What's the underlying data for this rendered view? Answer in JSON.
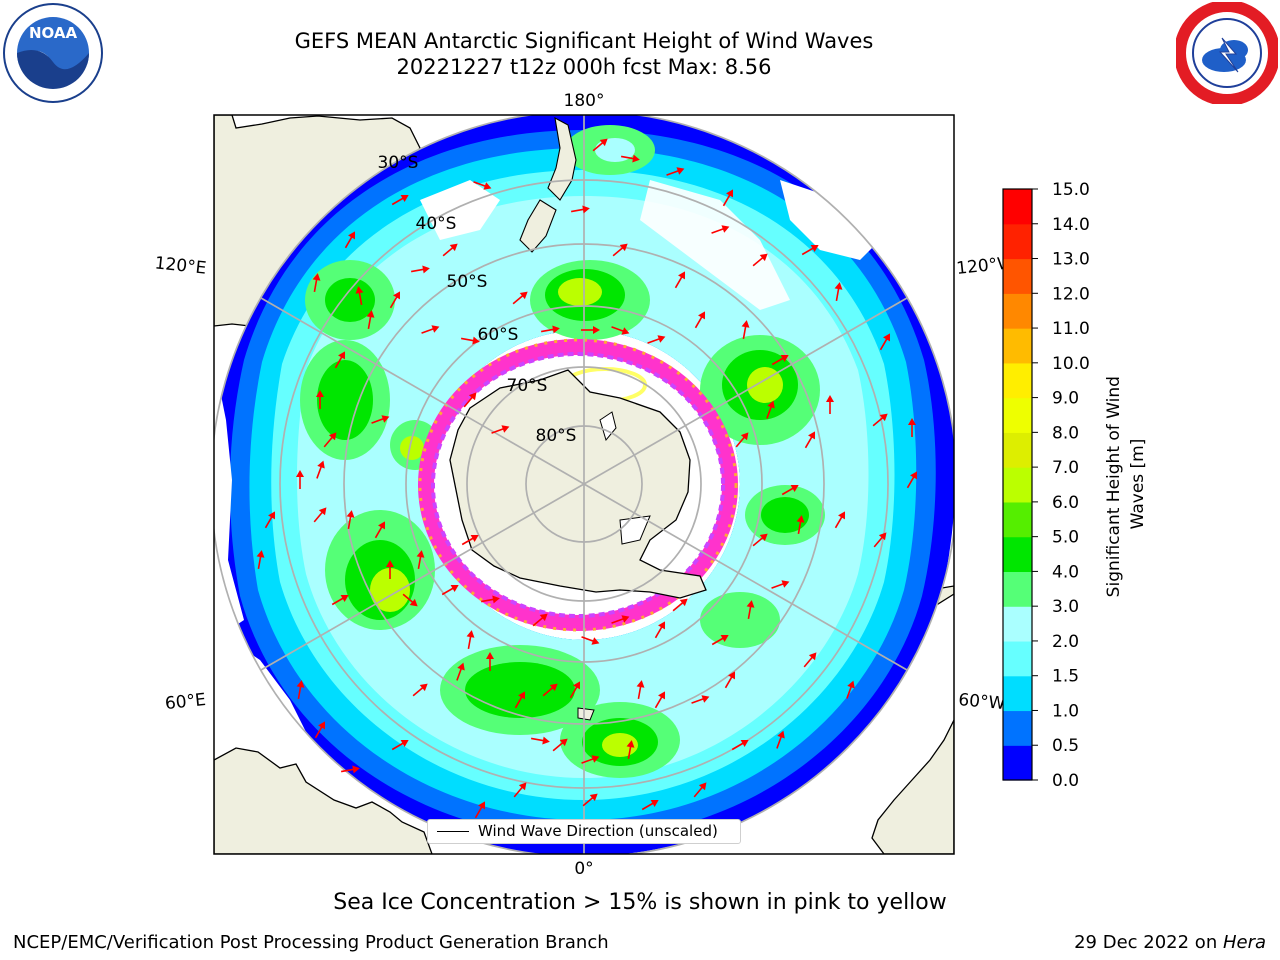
{
  "title": {
    "line1": "GEFS MEAN Antarctic Significant Height of Wind Waves",
    "line2": "20221227 t12z 000h fcst   Max: 8.56"
  },
  "logos": {
    "left": "NOAA",
    "right": "NATIONAL WEATHER SERVICE"
  },
  "map": {
    "projection": "south-polar-stereographic",
    "longitude_labels": [
      "180°",
      "120°E",
      "120°W",
      "60°E",
      "60°W",
      "0°"
    ],
    "latitude_labels": [
      "30°S",
      "40°S",
      "50°S",
      "60°S",
      "70°S",
      "80°S"
    ],
    "legend_label": "Wind Wave Direction (unscaled)",
    "colors": {
      "land": "#efefdf",
      "coast": "#000000",
      "gridlines": "#b0b0b0",
      "arrows": "#ff0000",
      "sea_ice": [
        "#ff33cc",
        "#cc44ff",
        "#ffaa33",
        "#ffff66"
      ]
    }
  },
  "colorbar": {
    "label_line1": "Significant Height of Wind",
    "label_line2": "Waves [m]",
    "ticks": [
      "0.0",
      "0.5",
      "1.0",
      "1.5",
      "2.0",
      "3.0",
      "4.0",
      "5.0",
      "6.0",
      "7.0",
      "8.0",
      "9.0",
      "10.0",
      "11.0",
      "12.0",
      "13.0",
      "14.0",
      "15.0"
    ],
    "colors": [
      "#0000ff",
      "#0073ff",
      "#00ddff",
      "#66ffff",
      "#aaffff",
      "#55ff77",
      "#00e600",
      "#55ee00",
      "#bbff00",
      "#ddee00",
      "#eeff00",
      "#ffee00",
      "#ffbb00",
      "#ff8800",
      "#ff5500",
      "#ff2200",
      "#ff0000"
    ]
  },
  "footer": {
    "note": "Sea Ice Concentration > 15% is shown in pink to yellow",
    "left": "NCEP/EMC/Verification Post Processing Product Generation Branch",
    "date": "29 Dec 2022 on ",
    "host": "Hera"
  }
}
